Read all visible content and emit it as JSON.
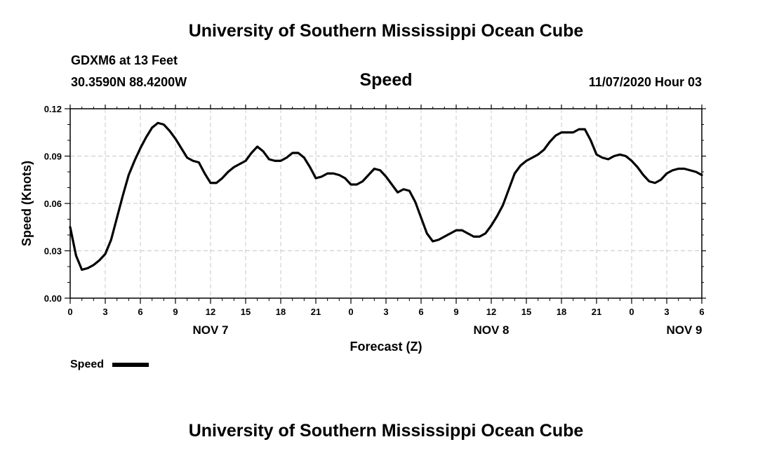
{
  "header": {
    "title_top": "University of Southern Mississippi Ocean Cube",
    "station_line1": "GDXM6 at 13 Feet",
    "station_line2": "30.3590N 88.4200W",
    "variable": "Speed",
    "datetime": "11/07/2020 Hour 03"
  },
  "footer": {
    "title_bottom": "University of Southern Mississippi Ocean Cube"
  },
  "colors": {
    "line": "#000000",
    "grid": "#c8c8c8",
    "background": "#ffffff"
  },
  "chart_data": {
    "type": "line",
    "title": "Speed",
    "xlabel": "Forecast (Z)",
    "ylabel": "Speed (Knots)",
    "ylim": [
      0,
      0.12
    ],
    "xlim": [
      0,
      54
    ],
    "x_unit": "hours from 11/07/2020 00Z",
    "grid": true,
    "x_tick_hours": [
      0,
      3,
      6,
      9,
      12,
      15,
      18,
      21,
      24,
      27,
      30,
      33,
      36,
      39,
      42,
      45,
      48,
      51,
      54
    ],
    "x_tick_labels": [
      "0",
      "3",
      "6",
      "9",
      "12",
      "15",
      "18",
      "21",
      "0",
      "3",
      "6",
      "9",
      "12",
      "15",
      "18",
      "21",
      "0",
      "3",
      "6"
    ],
    "y_ticks": [
      0,
      0.03,
      0.06,
      0.09,
      0.12
    ],
    "y_tick_labels": [
      "0.00",
      "0.03",
      "0.06",
      "0.09",
      "0.12"
    ],
    "day_labels": [
      {
        "hour": 12,
        "label": "NOV 7"
      },
      {
        "hour": 36,
        "label": "NOV 8"
      },
      {
        "hour": 52.5,
        "label": "NOV 9"
      }
    ],
    "legend": {
      "label": "Speed",
      "position": "bottom-left"
    },
    "series": [
      {
        "name": "Speed",
        "x": [
          0,
          0.5,
          1,
          1.5,
          2,
          2.5,
          3,
          3.5,
          4,
          4.5,
          5,
          5.5,
          6,
          6.5,
          7,
          7.5,
          8,
          8.5,
          9,
          9.5,
          10,
          10.5,
          11,
          11.5,
          12,
          12.5,
          13,
          13.5,
          14,
          14.5,
          15,
          15.5,
          16,
          16.5,
          17,
          17.5,
          18,
          18.5,
          19,
          19.5,
          20,
          20.5,
          21,
          21.5,
          22,
          22.5,
          23,
          23.5,
          24,
          24.5,
          25,
          25.5,
          26,
          26.5,
          27,
          27.5,
          28,
          28.5,
          29,
          29.5,
          30,
          30.5,
          31,
          31.5,
          32,
          32.5,
          33,
          33.5,
          34,
          34.5,
          35,
          35.5,
          36,
          36.5,
          37,
          37.5,
          38,
          38.5,
          39,
          39.5,
          40,
          40.5,
          41,
          41.5,
          42,
          42.5,
          43,
          43.5,
          44,
          44.5,
          45,
          45.5,
          46,
          46.5,
          47,
          47.5,
          48,
          48.5,
          49,
          49.5,
          50,
          50.5,
          51,
          51.5,
          52,
          52.5,
          53,
          53.5,
          54
        ],
        "values": [
          0.045,
          0.027,
          0.018,
          0.019,
          0.021,
          0.024,
          0.028,
          0.037,
          0.051,
          0.065,
          0.078,
          0.087,
          0.095,
          0.102,
          0.108,
          0.111,
          0.11,
          0.106,
          0.101,
          0.095,
          0.089,
          0.087,
          0.086,
          0.079,
          0.073,
          0.073,
          0.076,
          0.08,
          0.083,
          0.085,
          0.087,
          0.092,
          0.096,
          0.093,
          0.088,
          0.087,
          0.087,
          0.089,
          0.092,
          0.092,
          0.089,
          0.083,
          0.076,
          0.077,
          0.079,
          0.079,
          0.078,
          0.076,
          0.072,
          0.072,
          0.074,
          0.078,
          0.082,
          0.081,
          0.077,
          0.072,
          0.067,
          0.069,
          0.068,
          0.061,
          0.051,
          0.041,
          0.036,
          0.037,
          0.039,
          0.041,
          0.043,
          0.043,
          0.041,
          0.039,
          0.039,
          0.041,
          0.046,
          0.052,
          0.059,
          0.069,
          0.079,
          0.084,
          0.087,
          0.089,
          0.091,
          0.094,
          0.099,
          0.103,
          0.105,
          0.105,
          0.105,
          0.107,
          0.107,
          0.1,
          0.091,
          0.089,
          0.088,
          0.09,
          0.091,
          0.09,
          0.087,
          0.083,
          0.078,
          0.074,
          0.073,
          0.075,
          0.079,
          0.081,
          0.082,
          0.082,
          0.081,
          0.08,
          0.078
        ]
      }
    ]
  }
}
